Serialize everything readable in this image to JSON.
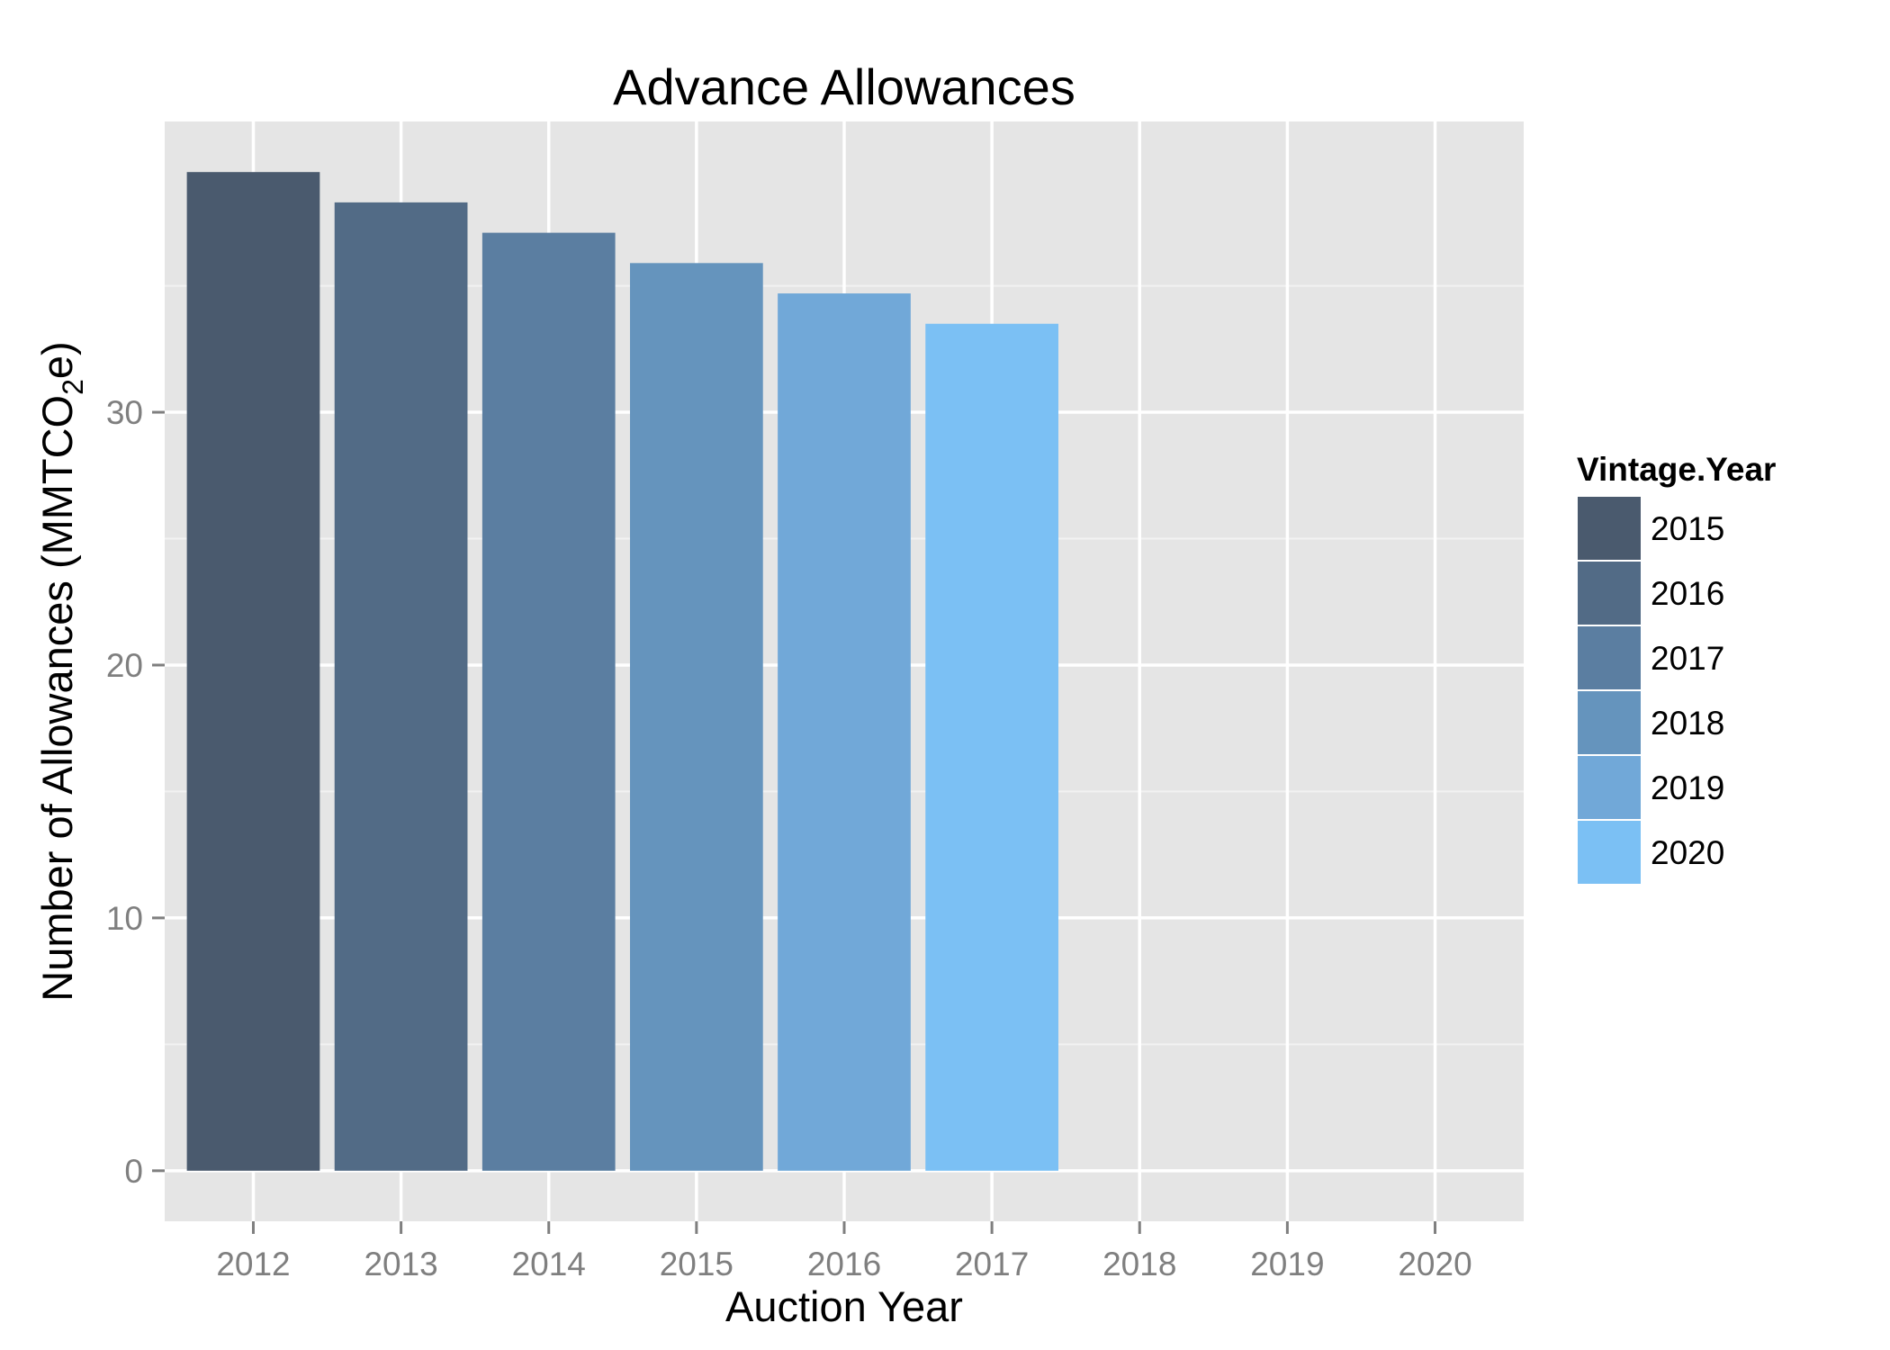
{
  "chart_data": {
    "type": "bar",
    "title": "Advance Allowances",
    "xlabel": "Auction Year",
    "ylabel": {
      "prefix": "Number of Allowances (MMTCO",
      "subscript": "2",
      "suffix": "e)"
    },
    "categories": [
      "2012",
      "2013",
      "2014",
      "2015",
      "2016",
      "2017",
      "2018",
      "2019",
      "2020"
    ],
    "series": [
      {
        "name": "2015",
        "category": "2012",
        "value": 39.5,
        "color": "#4a5a6e"
      },
      {
        "name": "2016",
        "category": "2013",
        "value": 38.3,
        "color": "#526b86"
      },
      {
        "name": "2017",
        "category": "2014",
        "value": 37.1,
        "color": "#5b7ea1"
      },
      {
        "name": "2018",
        "category": "2015",
        "value": 35.9,
        "color": "#6594bd"
      },
      {
        "name": "2019",
        "category": "2016",
        "value": 34.7,
        "color": "#71a8d8"
      },
      {
        "name": "2020",
        "category": "2017",
        "value": 33.5,
        "color": "#7bc0f4"
      }
    ],
    "ylim": [
      -2,
      41.5
    ],
    "yticks": [
      0,
      10,
      20,
      30
    ],
    "grid": true,
    "legend": {
      "title": "Vintage.Year",
      "placement": "right"
    }
  }
}
